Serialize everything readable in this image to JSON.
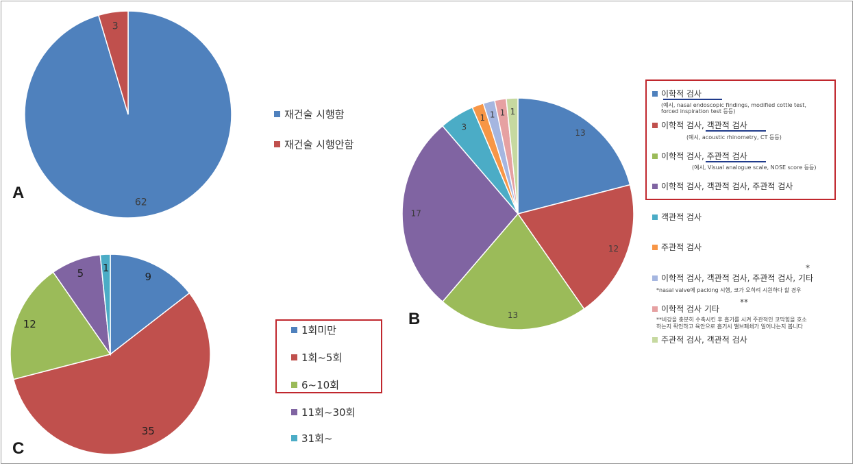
{
  "panels": {
    "a": "A",
    "b": "B",
    "c": "C"
  },
  "chart_data": [
    {
      "id": "A",
      "type": "pie",
      "categories": [
        "재건술 시행함",
        "재건술 시행안함"
      ],
      "values": [
        62,
        3
      ],
      "colors": [
        "#4f81bd",
        "#c0504d"
      ],
      "legend_position": "right"
    },
    {
      "id": "B",
      "type": "pie",
      "categories": [
        "이학적 검사",
        "이학적 검사, 객관적 검사",
        "이학적 검사, 주관적 검사",
        "이학적 검사, 객관적 검사, 주관적 검사",
        "객관적 검사",
        "주관적 검사",
        "이학적 검사, 객관적 검사, 주관적 검사, 기타",
        "이학적 검사 기타",
        "주관적 검사, 객관적 검사"
      ],
      "values": [
        13,
        12,
        13,
        17,
        3,
        1,
        1,
        1,
        1
      ],
      "colors": [
        "#4f81bd",
        "#c0504d",
        "#9bbb59",
        "#8064a2",
        "#4bacc6",
        "#f79646",
        "#a5b6e0",
        "#e6a1a2",
        "#c6d9a0"
      ],
      "legend_position": "right"
    },
    {
      "id": "C",
      "type": "pie",
      "categories": [
        "1회미만",
        "1회~5회",
        "6~10회",
        "11회~30회",
        "31회~"
      ],
      "values": [
        9,
        35,
        12,
        5,
        1
      ],
      "colors": [
        "#4f81bd",
        "#c0504d",
        "#9bbb59",
        "#8064a2",
        "#4bacc6"
      ],
      "legend_position": "right"
    }
  ],
  "legend_b": {
    "items": [
      "이학적 검사",
      "이학적 검사, 객관적 검사",
      "이학적 검사, 주관적 검사",
      "이학적 검사, 객관적 검사, 주관적 검사",
      "객관적 검사",
      "주관적 검사",
      "이학적 검사, 객관적 검사, 주관적 검사, 기타",
      "이학적 검사 기타",
      "주관적 검사, 객관적 검사"
    ],
    "note1a": "(예시, nasal endoscopic findings, modified cottle test,",
    "note1b": "forced inspiration test 등등)",
    "note2": "(예시, acoustic rhinometry, CT 등등)",
    "note3": "(예시, Visual analogue scale, NOSE score 등등)",
    "star1": "*",
    "footnote1": "*nasal valve에 packing 시행, 코가 오히려 시원하다 할 경우",
    "star2": "**",
    "footnote2a": "**비강을 충분히 수축시킨 후 흡기를 시켜 주관적인 코막힘을 호소",
    "footnote2b": "하는지 확인하고 육안으로 흡기시 밸브폐쇄가 일어나는지 봅니다"
  }
}
